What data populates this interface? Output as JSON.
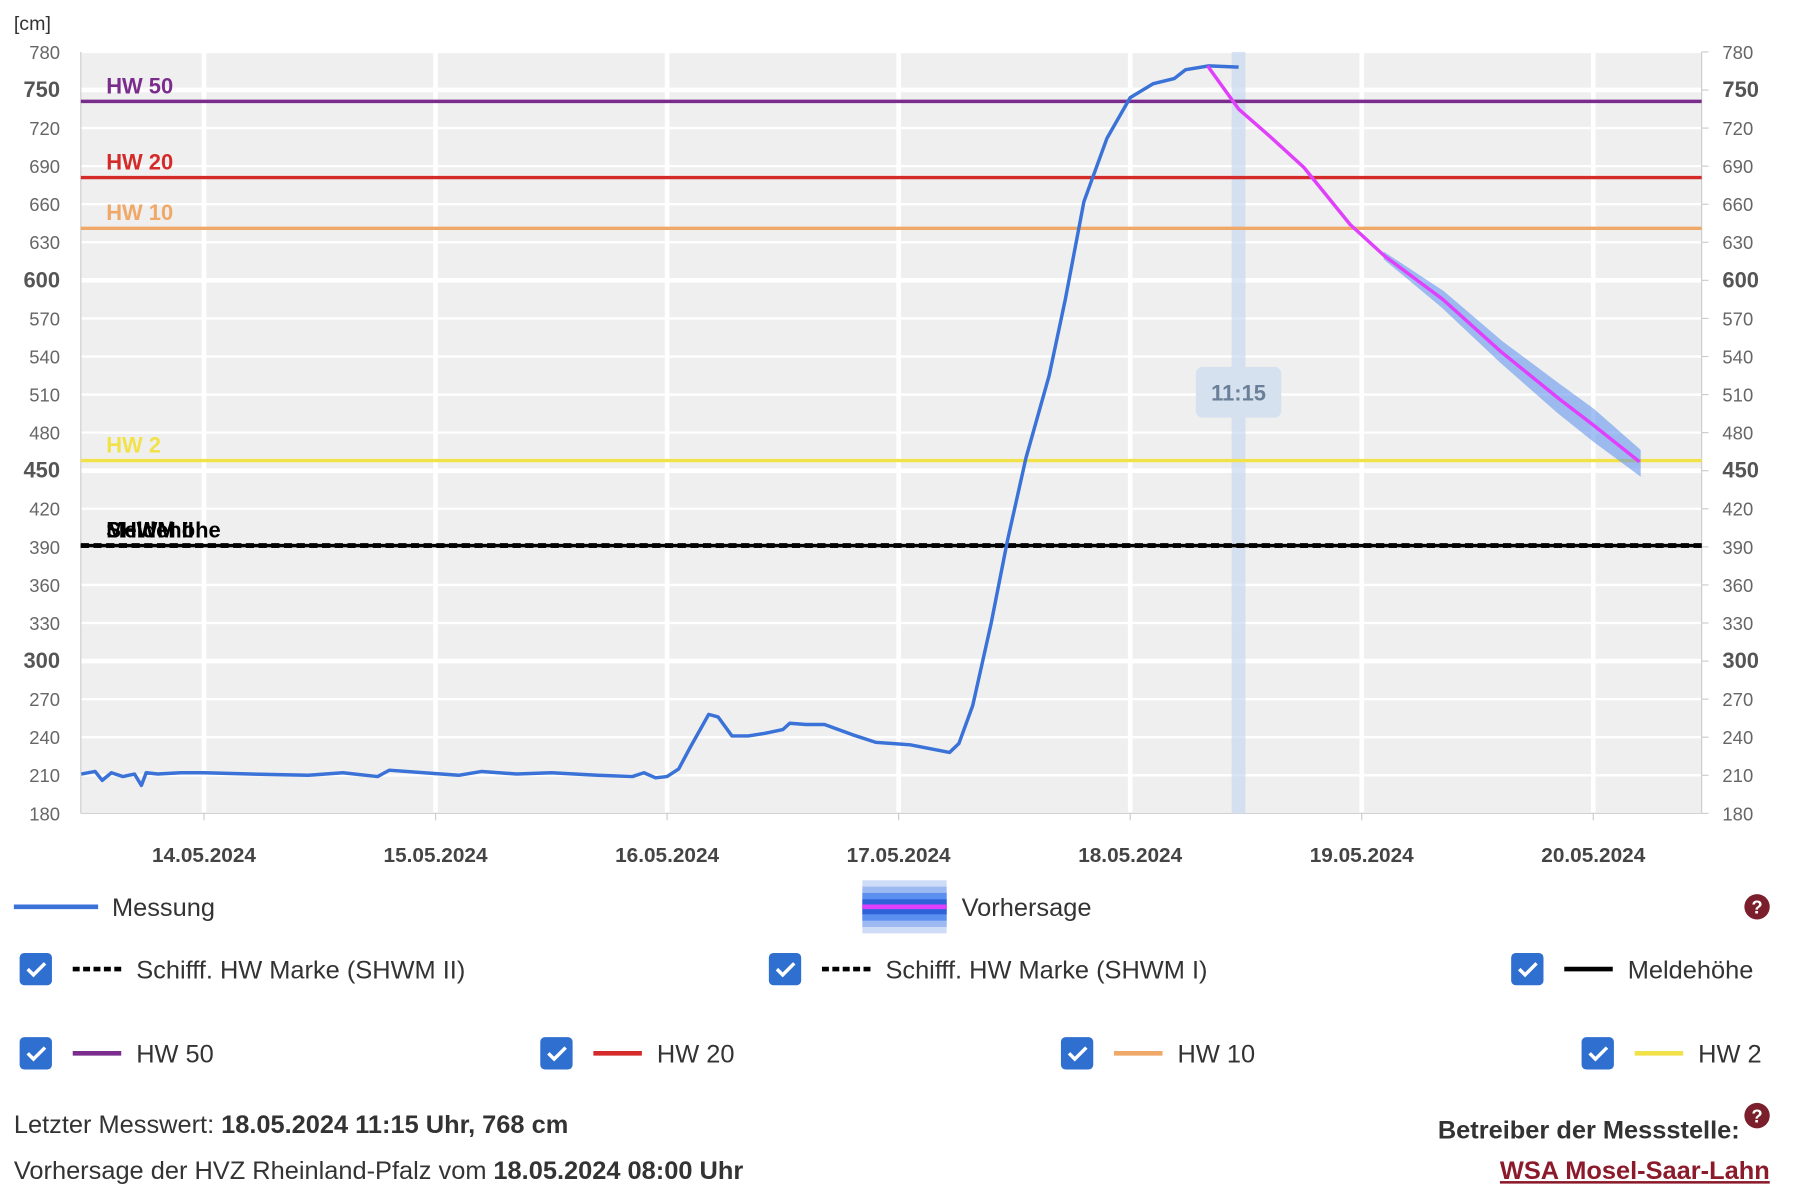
{
  "y_unit": "[cm]",
  "chart_data": {
    "type": "line",
    "xlim": [
      -0.532,
      6.468
    ],
    "xticks": [
      {
        "value": 0,
        "label": "14.05.2024"
      },
      {
        "value": 1,
        "label": "15.05.2024"
      },
      {
        "value": 2,
        "label": "16.05.2024"
      },
      {
        "value": 3,
        "label": "17.05.2024"
      },
      {
        "value": 4,
        "label": "18.05.2024"
      },
      {
        "value": 5,
        "label": "19.05.2024"
      },
      {
        "value": 6,
        "label": "20.05.2024"
      }
    ],
    "ylim": [
      180,
      780
    ],
    "yticks": [
      180,
      210,
      240,
      270,
      300,
      330,
      360,
      390,
      420,
      450,
      480,
      510,
      540,
      570,
      600,
      630,
      660,
      690,
      720,
      750,
      780
    ],
    "y2lim": [
      180,
      780
    ],
    "y2ticks": [
      180,
      210,
      240,
      270,
      300,
      330,
      360,
      390,
      420,
      450,
      480,
      510,
      540,
      570,
      600,
      630,
      660,
      690,
      720,
      750,
      780
    ],
    "grid": true,
    "series": [
      {
        "name": "Messung",
        "color": "#3a72d8",
        "x": [
          -0.53,
          -0.47,
          -0.44,
          -0.4,
          -0.35,
          -0.3,
          -0.27,
          -0.25,
          -0.2,
          -0.1,
          0.0,
          0.2,
          0.45,
          0.6,
          0.75,
          0.8,
          0.95,
          1.1,
          1.2,
          1.35,
          1.5,
          1.7,
          1.85,
          1.9,
          1.95,
          2.0,
          2.05,
          2.1,
          2.18,
          2.22,
          2.28,
          2.35,
          2.42,
          2.5,
          2.53,
          2.6,
          2.68,
          2.8,
          2.9,
          3.05,
          3.22,
          3.26,
          3.32,
          3.4,
          3.47,
          3.55,
          3.65,
          3.72,
          3.8,
          3.9,
          4.0,
          4.1,
          4.19,
          4.24,
          4.34,
          4.468
        ],
        "values": [
          211,
          213,
          206,
          212,
          209,
          211,
          202,
          212,
          211,
          212,
          212,
          211,
          210,
          212,
          209,
          214,
          212,
          210,
          213,
          211,
          212,
          210,
          209,
          212,
          208,
          209,
          215,
          232,
          258,
          256,
          241,
          241,
          243,
          246,
          251,
          250,
          250,
          242,
          236,
          234,
          228,
          235,
          265,
          330,
          395,
          460,
          525,
          585,
          662,
          712,
          744,
          755,
          759,
          766,
          769,
          768
        ]
      },
      {
        "name": "Vorhersage",
        "color": "#e040fb",
        "x": [
          4.334,
          4.468,
          4.6,
          4.75,
          4.95,
          5.1,
          5.35,
          5.6,
          5.85,
          6.0,
          6.2
        ],
        "values": [
          769,
          735,
          714,
          689,
          644,
          619,
          585,
          544,
          507,
          486,
          457
        ],
        "band": {
          "color": "#5b8ff0",
          "x": [
            5.1,
            5.35,
            5.6,
            5.85,
            6.0,
            6.2
          ],
          "lower": [
            617,
            579,
            536,
            496,
            474,
            447
          ],
          "upper": [
            621,
            591,
            552,
            518,
            498,
            466
          ]
        }
      }
    ],
    "thresholds": [
      {
        "name": "Schifff. HW Marke (SHWM II)",
        "label": "SHWM II",
        "value": 391,
        "color": "#000000",
        "style": "dashed"
      },
      {
        "name": "Schifff. HW Marke (SHWM I)",
        "label": "SHWM I",
        "value": 391,
        "color": "#000000",
        "style": "dashed"
      },
      {
        "name": "Meldehöhe",
        "label": "Meldehöhe",
        "value": 391,
        "color": "#000000",
        "style": "solid"
      },
      {
        "name": "HW 50",
        "label": "HW 50",
        "value": 741,
        "color": "#7b2d8e",
        "style": "solid"
      },
      {
        "name": "HW 20",
        "label": "HW 20",
        "value": 681,
        "color": "#d42a2a",
        "style": "solid"
      },
      {
        "name": "HW 10",
        "label": "HW 10",
        "value": 641,
        "color": "#f0a868",
        "style": "solid"
      },
      {
        "name": "HW 2",
        "label": "HW 2",
        "value": 458,
        "color": "#f2e24a",
        "style": "solid"
      }
    ],
    "highlight": {
      "x": 4.468,
      "label": "11:15"
    }
  },
  "footer": {
    "last_label": "Letzter Messwert:",
    "last_value": "18.05.2024 11:15 Uhr, 768 cm",
    "forecast_label": "Vorhersage der HVZ Rheinland-Pfalz vom",
    "forecast_value": "18.05.2024 08:00 Uhr",
    "operator_label": "Betreiber der Messstelle:",
    "operator_link": "WSA Mosel-Saar-Lahn"
  },
  "help_icon": "?"
}
